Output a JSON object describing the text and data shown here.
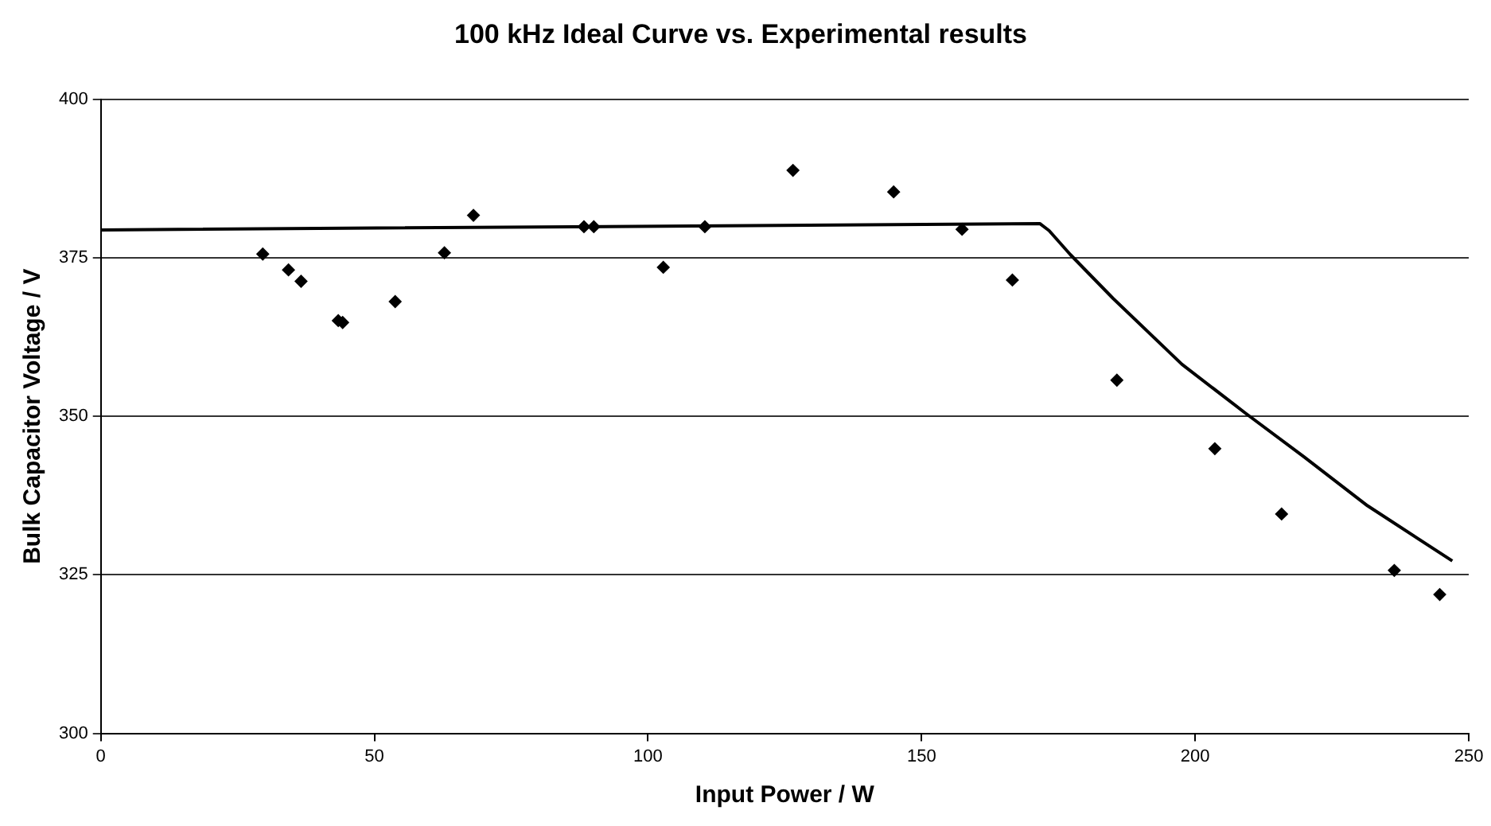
{
  "chart_data": {
    "type": "scatter",
    "title": "100 kHz Ideal Curve vs. Experimental results",
    "xlabel": "Input Power / W",
    "ylabel": "Bulk Capacitor Voltage / V",
    "xlim": [
      0,
      250
    ],
    "xticks": [
      0,
      50,
      100,
      150,
      200,
      250
    ],
    "ylim": [
      300,
      400
    ],
    "yticks": [
      300,
      325,
      350,
      375,
      400
    ],
    "grid": "y",
    "series": [
      {
        "type": "scatter",
        "color": "#000000",
        "marker": "diamond",
        "x": [
          29.6,
          34.3,
          36.6,
          43.4,
          44.2,
          53.8,
          62.8,
          68.1,
          88.3,
          90.1,
          102.8,
          110.4,
          126.5,
          144.9,
          157.4,
          166.6,
          185.7,
          203.6,
          215.8,
          236.4,
          244.7
        ],
        "values": [
          375.6,
          373.1,
          371.3,
          365.1,
          364.8,
          368.1,
          375.8,
          381.7,
          379.9,
          379.9,
          373.5,
          379.9,
          388.8,
          385.4,
          379.5,
          371.5,
          355.7,
          344.9,
          334.6,
          325.7,
          321.9
        ]
      },
      {
        "type": "line",
        "color": "#000000",
        "marker": "none",
        "x": [
          0,
          171.6,
          173.3,
          177.2,
          185,
          197.6,
          209.2,
          219.9,
          231.5,
          247
        ],
        "values": [
          379.4,
          380.4,
          379.3,
          375.5,
          368.6,
          358.2,
          350.5,
          343.6,
          335.9,
          327.2
        ]
      }
    ]
  }
}
